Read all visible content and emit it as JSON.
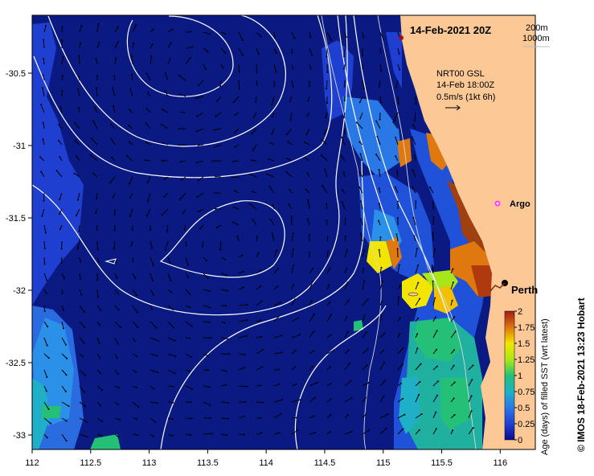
{
  "map": {
    "title": "14-Feb-2021 20Z",
    "depth_legend": [
      "200m",
      "1000m"
    ],
    "product": {
      "line1": "NRT00 GSL",
      "line2": "14-Feb 18:00Z",
      "line3": "0.5m/s (1kt 6h)"
    },
    "places": [
      {
        "name": "Argo",
        "lon": 115.8,
        "lat": -31.45
      },
      {
        "name": "Perth",
        "lon": 115.85,
        "lat": -31.95
      }
    ],
    "x_ticks": [
      "112",
      "112.5",
      "113",
      "113.5",
      "114",
      "114.5",
      "115",
      "115.5",
      "116"
    ],
    "y_ticks": [
      "-30.5",
      "-31",
      "-31.5",
      "-32",
      "-32.5",
      "-33"
    ],
    "xlim": [
      112,
      116.3
    ],
    "ylim": [
      -33.1,
      -30.1
    ],
    "colorbar": {
      "label": "Age (days) of filled SST (wrt latest)",
      "ticks": [
        "0",
        "0.25",
        "0.5",
        "0.75",
        "1",
        "1.25",
        "1.5",
        "1.75",
        "2"
      ],
      "range": [
        0,
        2
      ]
    },
    "credit": "© IMOS 18-Feb-2021 13:23 Hobart",
    "colors": {
      "ocean": "#0a1a82",
      "land": "#fcc896",
      "contour": "#ffffff"
    }
  }
}
